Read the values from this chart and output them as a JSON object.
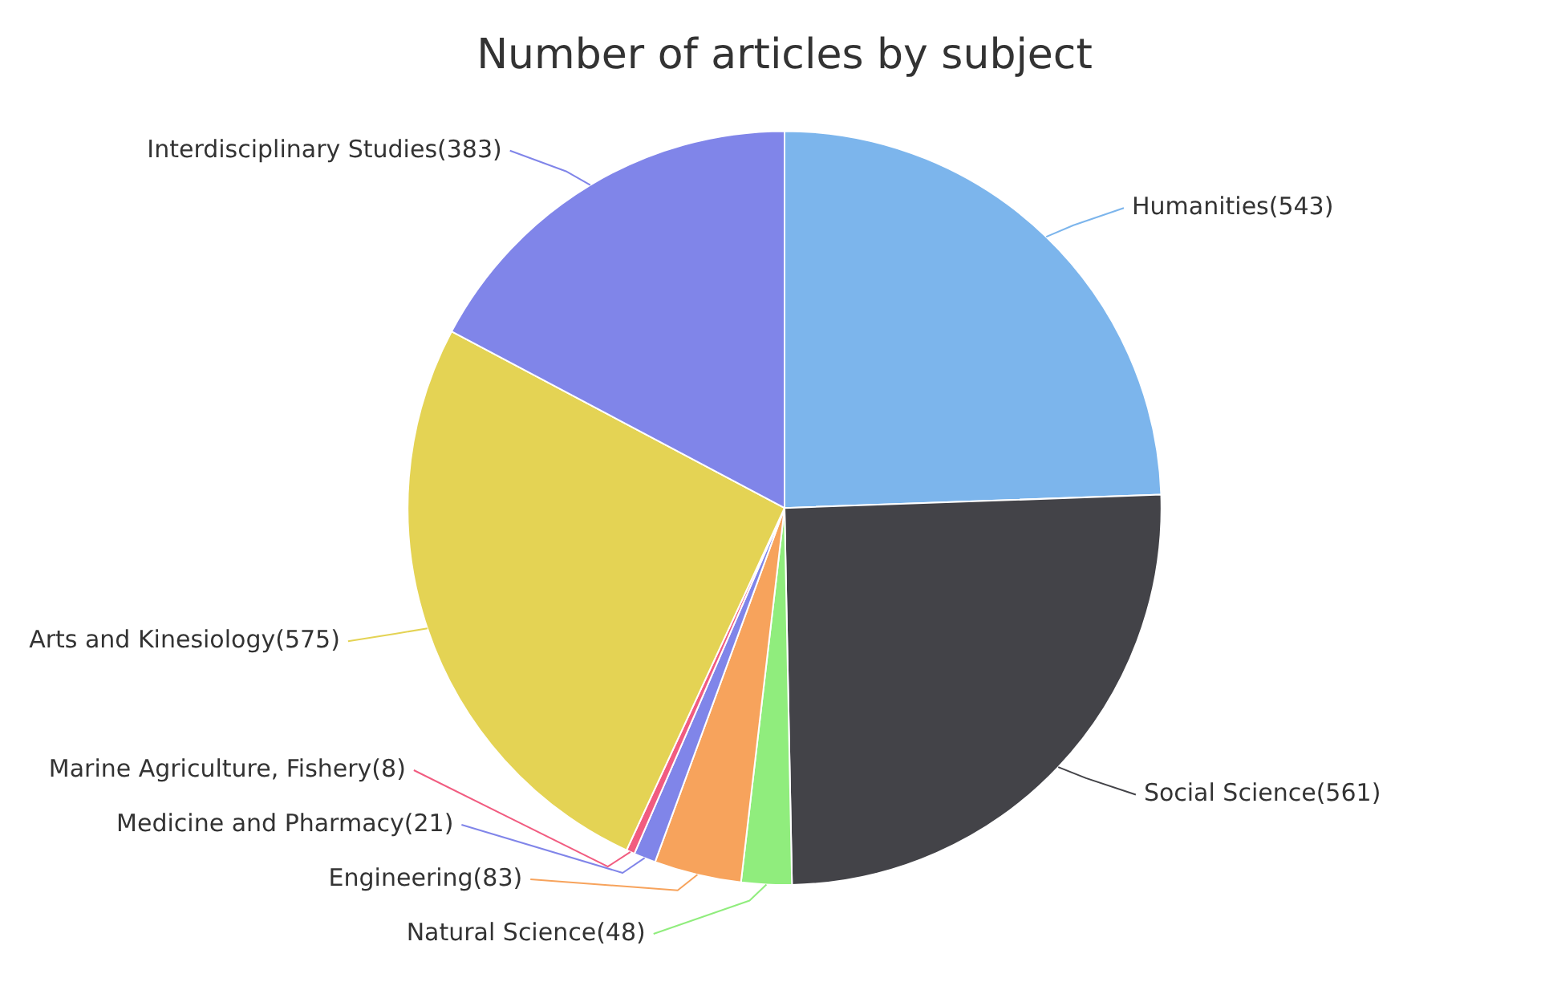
{
  "chart_data": {
    "type": "pie",
    "title": "Number of articles by subject",
    "categories": [
      "Humanities",
      "Social Science",
      "Natural Science",
      "Engineering",
      "Medicine and Pharmacy",
      "Marine Agriculture, Fishery",
      "Arts and Kinesiology",
      "Interdisciplinary Studies"
    ],
    "values": [
      543,
      561,
      48,
      83,
      21,
      8,
      575,
      383
    ],
    "colors": [
      "#7cb5ec",
      "#434348",
      "#90ed7d",
      "#f7a35c",
      "#8085e9",
      "#f15c80",
      "#e4d354",
      "#8085e9"
    ],
    "value_labels": [
      "(543)",
      "(561)",
      "(48)",
      "(83)",
      "(21)",
      "(8)",
      "(575)",
      "(383)"
    ],
    "legend": false
  }
}
